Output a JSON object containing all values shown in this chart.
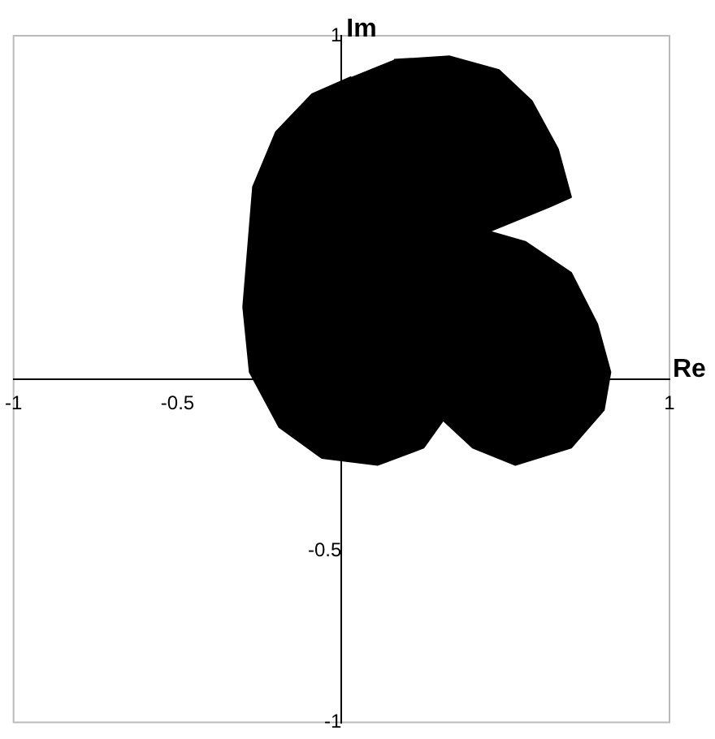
{
  "chart_data": {
    "type": "area",
    "xlabel": "Re",
    "ylabel": "Im",
    "xlim": [
      -1,
      1
    ],
    "ylim": [
      -1,
      1
    ],
    "xticks": [
      -1,
      -0.5,
      1
    ],
    "yticks": [
      1,
      -0.5,
      -1
    ],
    "grid": false,
    "legend": false,
    "series": [
      {
        "color": "#000000",
        "x": [
          0.16,
          0.33,
          0.48,
          0.58,
          0.66,
          0.7,
          0.63,
          0.45,
          0.56,
          0.7,
          0.78,
          0.82,
          0.8,
          0.7,
          0.53,
          0.4,
          0.31,
          0.25,
          0.11,
          -0.06,
          -0.19,
          -0.28,
          -0.3,
          -0.27,
          -0.2,
          -0.09,
          0.03
        ],
        "values": [
          0.93,
          0.94,
          0.9,
          0.81,
          0.67,
          0.53,
          0.5,
          0.43,
          0.4,
          0.31,
          0.16,
          0.02,
          -0.09,
          -0.2,
          -0.25,
          -0.2,
          -0.12,
          -0.2,
          -0.25,
          -0.23,
          -0.14,
          0.02,
          0.21,
          0.56,
          0.72,
          0.83,
          0.88
        ]
      }
    ]
  }
}
